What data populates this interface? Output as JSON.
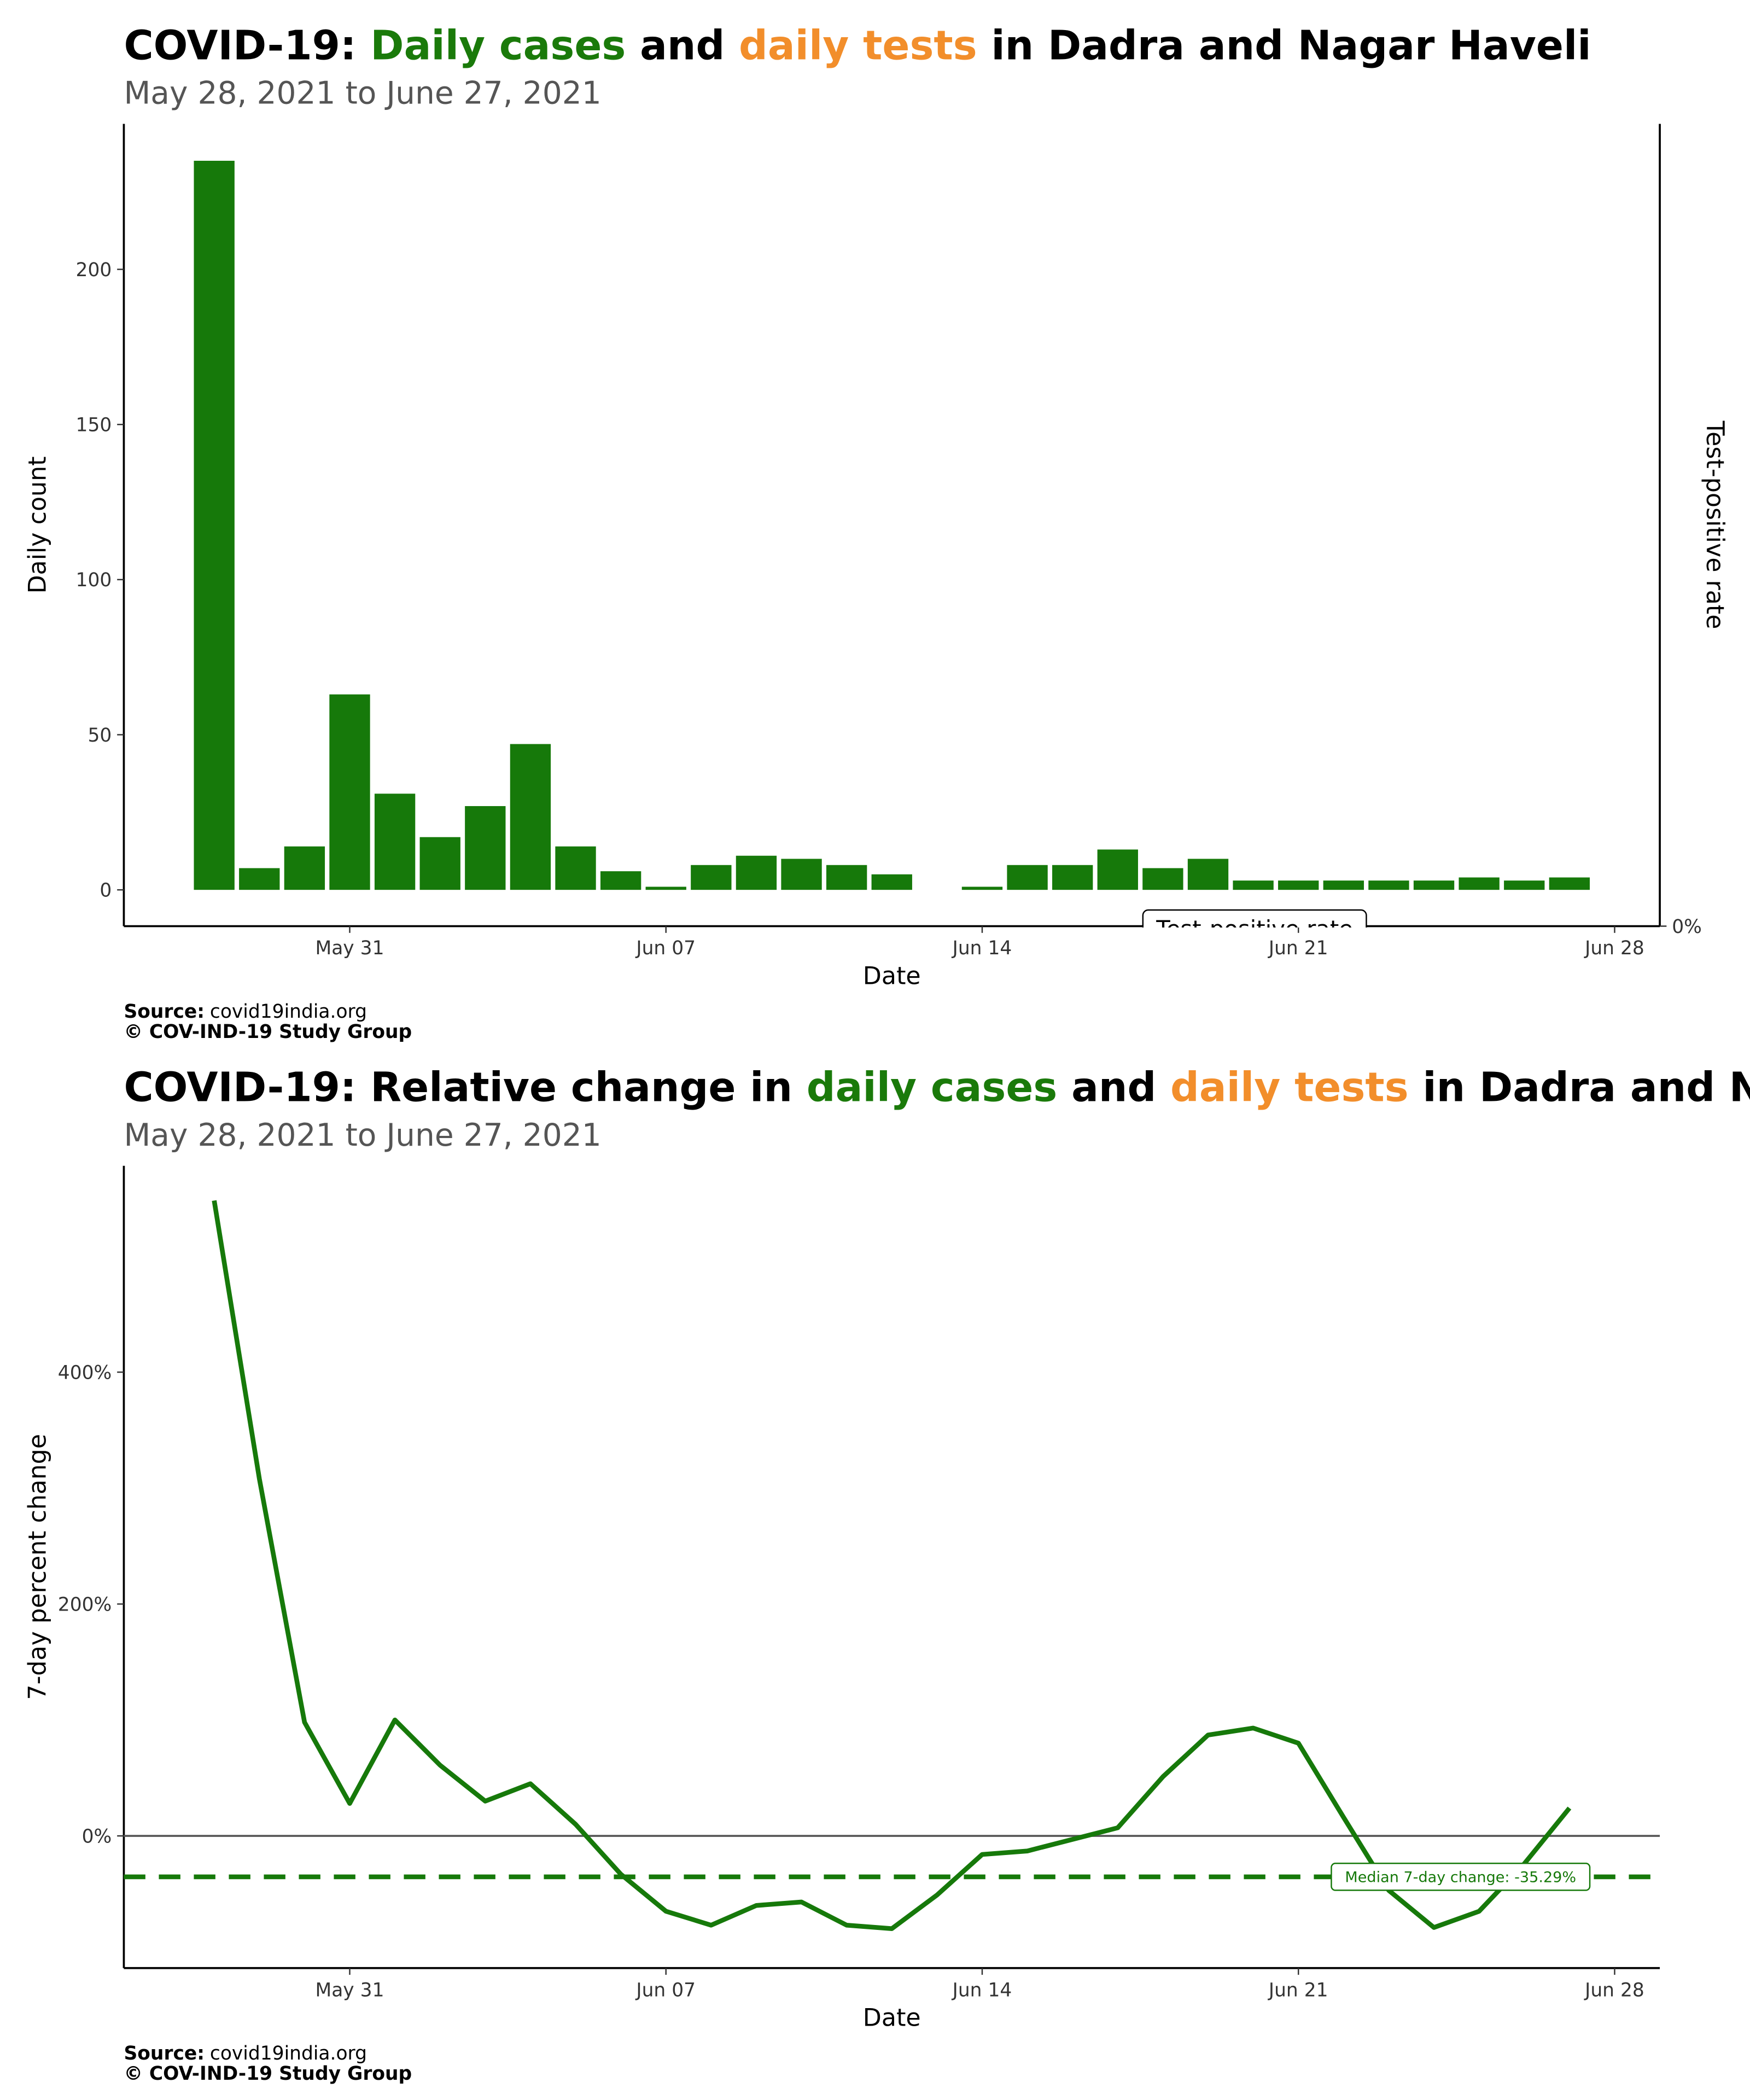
{
  "chart_data": [
    {
      "type": "bar",
      "title": [
        "COVID-19: ",
        "Daily cases",
        " and ",
        "daily tests",
        " in Dadra and Nagar Haveli"
      ],
      "title_colors": [
        "#000000",
        "#1a7a0a",
        "#000000",
        "#f28e2b",
        "#000000"
      ],
      "subtitle": "May 28, 2021 to June 27, 2021",
      "x": [
        "2021-05-28",
        "2021-05-29",
        "2021-05-30",
        "2021-05-31",
        "2021-06-01",
        "2021-06-02",
        "2021-06-03",
        "2021-06-04",
        "2021-06-05",
        "2021-06-06",
        "2021-06-07",
        "2021-06-08",
        "2021-06-09",
        "2021-06-10",
        "2021-06-11",
        "2021-06-12",
        "2021-06-13",
        "2021-06-14",
        "2021-06-15",
        "2021-06-16",
        "2021-06-17",
        "2021-06-18",
        "2021-06-19",
        "2021-06-20",
        "2021-06-21",
        "2021-06-22",
        "2021-06-23",
        "2021-06-24",
        "2021-06-25",
        "2021-06-26",
        "2021-06-27"
      ],
      "values": [
        235,
        7,
        14,
        63,
        31,
        17,
        27,
        47,
        14,
        6,
        1,
        8,
        11,
        10,
        8,
        5,
        0,
        1,
        8,
        8,
        13,
        7,
        10,
        3,
        3,
        3,
        3,
        3,
        4,
        3,
        4
      ],
      "color": "#16790a",
      "xlim": [
        "2021-05-26",
        "2021-06-29"
      ],
      "xticks": [
        {
          "value": "2021-05-31",
          "label": "May 31"
        },
        {
          "value": "2021-06-07",
          "label": "Jun 07"
        },
        {
          "value": "2021-06-14",
          "label": "Jun 14"
        },
        {
          "value": "2021-06-21",
          "label": "Jun 21"
        },
        {
          "value": "2021-06-28",
          "label": "Jun 28"
        }
      ],
      "ylim": [
        -11.7,
        246.9
      ],
      "yticks": [
        0,
        50,
        100,
        150,
        200
      ],
      "y2lim": [
        0,
        1
      ],
      "y2ticks": [
        {
          "value": 0,
          "label": "0%"
        }
      ],
      "x_label": "Date",
      "y_label": "Daily count",
      "y2_label": "Test-positive rate",
      "legend_label": "Test-positive rate",
      "source": [
        "Source:",
        "covid19india.org"
      ],
      "copyright": "© COV-IND-19 Study Group"
    },
    {
      "type": "line",
      "title": [
        "COVID-19: Relative change in ",
        "daily cases",
        " and ",
        "daily tests",
        " in Dadra and Nagar Haveli"
      ],
      "title_colors": [
        "#000000",
        "#1a7a0a",
        "#000000",
        "#f28e2b",
        "#000000"
      ],
      "subtitle": "May 28, 2021 to June 27, 2021",
      "x": [
        "2021-05-28",
        "2021-05-29",
        "2021-05-30",
        "2021-05-31",
        "2021-06-01",
        "2021-06-02",
        "2021-06-03",
        "2021-06-04",
        "2021-06-05",
        "2021-06-06",
        "2021-06-07",
        "2021-06-08",
        "2021-06-09",
        "2021-06-10",
        "2021-06-11",
        "2021-06-12",
        "2021-06-13",
        "2021-06-14",
        "2021-06-15",
        "2021-06-16",
        "2021-06-17",
        "2021-06-18",
        "2021-06-19",
        "2021-06-20",
        "2021-06-21",
        "2021-06-22",
        "2021-06-23",
        "2021-06-24",
        "2021-06-25",
        "2021-06-26",
        "2021-06-27"
      ],
      "values": [
        548,
        308,
        98,
        28,
        100,
        61,
        30,
        45,
        10,
        -33,
        -65,
        -77,
        -60,
        -57,
        -77,
        -80,
        -51,
        -16,
        -13,
        -3,
        7,
        51,
        87,
        93,
        80,
        16,
        -47,
        -79,
        -65,
        -24,
        24
      ],
      "color": "#16790a",
      "median": -35.29,
      "median_label": "Median 7-day change: -35.29%",
      "xlim": [
        "2021-05-26",
        "2021-06-29"
      ],
      "xticks": [
        {
          "value": "2021-05-31",
          "label": "May 31"
        },
        {
          "value": "2021-06-07",
          "label": "Jun 07"
        },
        {
          "value": "2021-06-14",
          "label": "Jun 14"
        },
        {
          "value": "2021-06-21",
          "label": "Jun 21"
        },
        {
          "value": "2021-06-28",
          "label": "Jun 28"
        }
      ],
      "ylim": [
        -114,
        578
      ],
      "yticks": [
        {
          "value": 0,
          "label": "0%"
        },
        {
          "value": 200,
          "label": "200%"
        },
        {
          "value": 400,
          "label": "400%"
        }
      ],
      "x_label": "Date",
      "y_label": "7-day percent change",
      "source": [
        "Source:",
        "covid19india.org"
      ],
      "copyright": "© COV-IND-19 Study Group"
    }
  ]
}
